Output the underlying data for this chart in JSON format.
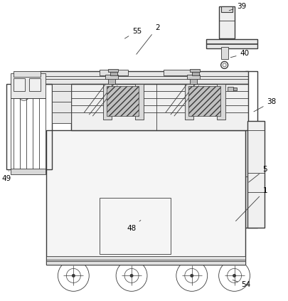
{
  "background_color": "#ffffff",
  "line_color": "#3a3a3a",
  "figsize": [
    4.06,
    4.23
  ],
  "dpi": 100,
  "lw": 1.0,
  "tlw": 0.6
}
